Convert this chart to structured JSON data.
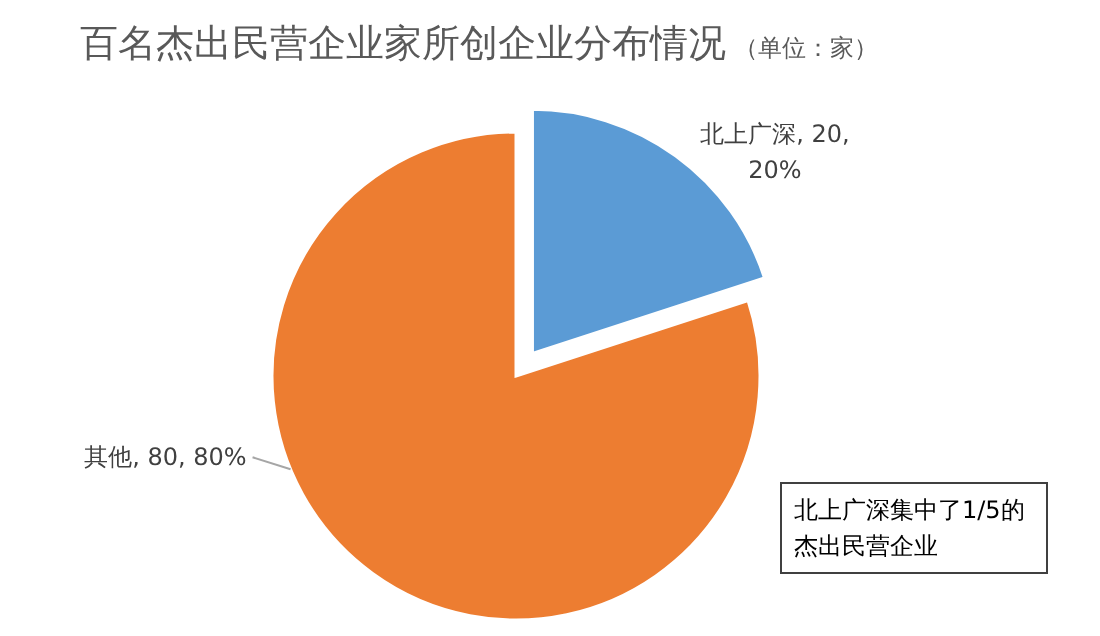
{
  "chart_data": {
    "type": "pie",
    "title": "百名杰出民营企业家所创企业分布情况",
    "subtitle": "（单位：家）",
    "categories": [
      "北上广深",
      "其他"
    ],
    "values": [
      20,
      80
    ],
    "colors": [
      "#5b9bd5",
      "#ed7d31"
    ],
    "value_labels": [
      "20, 20%",
      "80, 80%"
    ],
    "annotations": [
      "北上广深集中了1/5的杰出民营企业"
    ]
  }
}
